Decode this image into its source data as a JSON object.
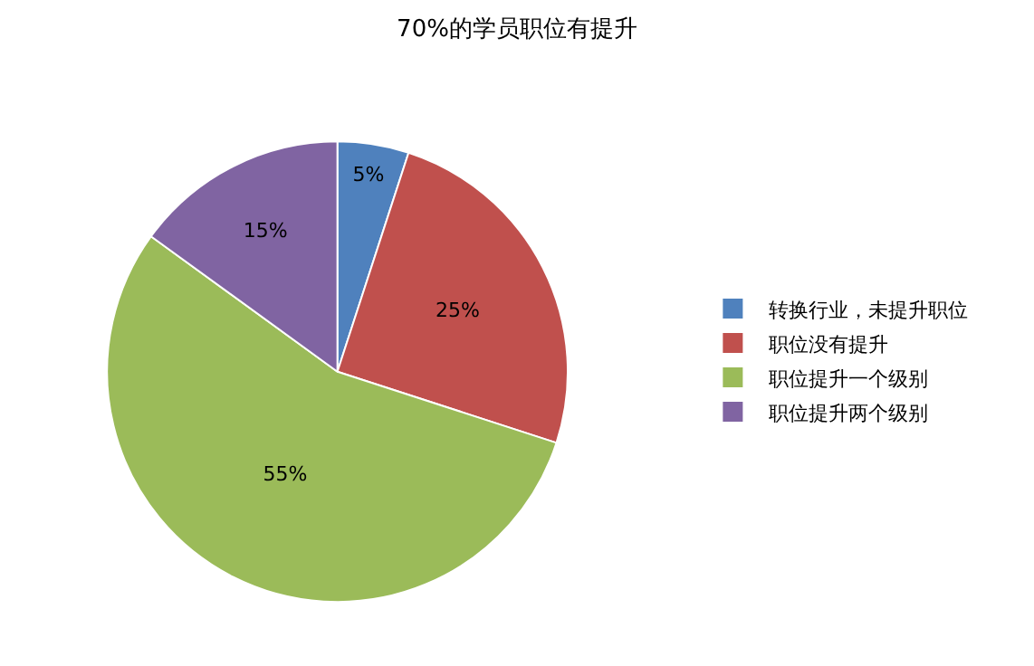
{
  "chart_data": {
    "type": "pie",
    "title": "70%的学员职位有提升",
    "categories": [
      "转换行业，未提升职位",
      "职位没有提升",
      "职位提升一个级别",
      "职位提升两个级别"
    ],
    "values": [
      5,
      25,
      55,
      15
    ],
    "colors": [
      "#4f81bd",
      "#c0504d",
      "#9bbb59",
      "#8064a2"
    ],
    "value_labels": [
      "5%",
      "25%",
      "55%",
      "15%"
    ],
    "legend": "right"
  }
}
